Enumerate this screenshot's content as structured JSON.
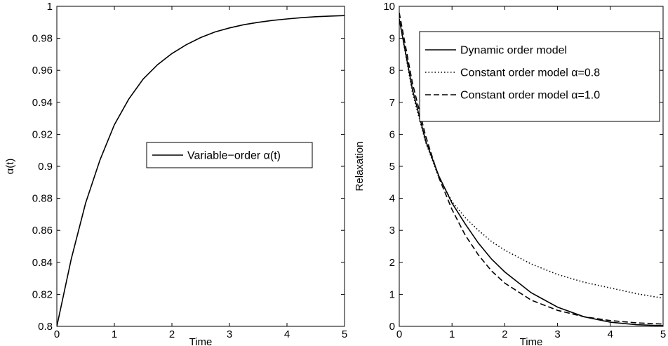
{
  "chart_data": [
    {
      "type": "line",
      "title": "",
      "xlabel": "Time",
      "ylabel": "α(t)",
      "xlim": [
        0,
        5
      ],
      "ylim": [
        0.8,
        1
      ],
      "grid": false,
      "legend_position": "center-right",
      "x_ticks": [
        "0",
        "1",
        "2",
        "3",
        "4",
        "5"
      ],
      "y_ticks": [
        "0.8",
        "0.82",
        "0.84",
        "0.86",
        "0.88",
        "0.9",
        "0.92",
        "0.94",
        "0.96",
        "0.98",
        "1"
      ],
      "series": [
        {
          "name": "Variable−order α(t)",
          "style": "solid",
          "color": "#000000",
          "x": [
            0,
            0.25,
            0.5,
            0.75,
            1,
            1.25,
            1.5,
            1.75,
            2,
            2.25,
            2.5,
            2.75,
            3,
            3.25,
            3.5,
            3.75,
            4,
            4.25,
            4.5,
            4.75,
            5
          ],
          "y": [
            0.8,
            0.842,
            0.877,
            0.904,
            0.926,
            0.942,
            0.9545,
            0.9635,
            0.9705,
            0.976,
            0.9805,
            0.984,
            0.9865,
            0.9885,
            0.99,
            0.9912,
            0.9921,
            0.9929,
            0.9935,
            0.9939,
            0.9942
          ]
        }
      ]
    },
    {
      "type": "line",
      "title": "",
      "xlabel": "Time",
      "ylabel": "Relaxation",
      "xlim": [
        0,
        5
      ],
      "ylim": [
        0,
        10
      ],
      "grid": false,
      "legend_position": "top-right",
      "x_ticks": [
        "0",
        "1",
        "2",
        "3",
        "4",
        "5"
      ],
      "y_ticks": [
        "0",
        "1",
        "2",
        "3",
        "4",
        "5",
        "6",
        "7",
        "8",
        "9",
        "10"
      ],
      "series": [
        {
          "name": "Dynamic order model",
          "style": "solid",
          "color": "#000000",
          "x": [
            0,
            0.25,
            0.5,
            0.75,
            1,
            1.25,
            1.5,
            1.75,
            2,
            2.5,
            3,
            3.5,
            4,
            4.5,
            5
          ],
          "y": [
            9.6,
            7.4,
            5.8,
            4.7,
            3.85,
            3.2,
            2.6,
            2.1,
            1.7,
            1.05,
            0.6,
            0.3,
            0.13,
            0.05,
            0.02
          ]
        },
        {
          "name": "Constant order model α=0.8",
          "style": "dotted",
          "color": "#000000",
          "x": [
            0,
            0.25,
            0.5,
            0.75,
            1,
            1.25,
            1.5,
            1.75,
            2,
            2.5,
            3,
            3.5,
            4,
            4.5,
            5
          ],
          "y": [
            9.6,
            7.3,
            5.75,
            4.65,
            3.9,
            3.4,
            3.0,
            2.65,
            2.38,
            1.95,
            1.62,
            1.38,
            1.2,
            1.02,
            0.88
          ]
        },
        {
          "name": "Constant order model α=1.0",
          "style": "dashed",
          "color": "#000000",
          "x": [
            0,
            0.25,
            0.5,
            0.75,
            1,
            1.25,
            1.5,
            1.75,
            2,
            2.5,
            3,
            3.5,
            4,
            4.5,
            5
          ],
          "y": [
            9.8,
            7.6,
            5.95,
            4.65,
            3.65,
            2.85,
            2.23,
            1.73,
            1.35,
            0.82,
            0.5,
            0.3,
            0.18,
            0.11,
            0.07
          ]
        }
      ]
    }
  ]
}
